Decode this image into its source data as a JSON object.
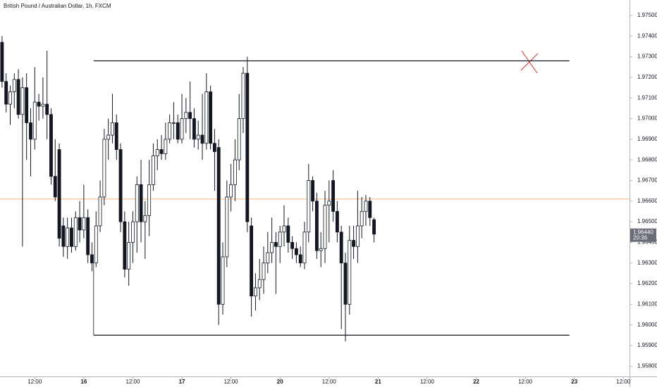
{
  "chart_data": {
    "type": "candlestick",
    "title": "British Pound / Australian Dollar, 1h, FXCM",
    "open": [
      1.9737,
      1.9718,
      1.9707,
      1.9713,
      1.9719,
      1.9702,
      1.9715,
      1.9698,
      1.969,
      1.9708,
      1.9706,
      1.9707,
      1.9702,
      1.9672,
      1.9685,
      1.9648,
      1.9638,
      1.9647,
      1.9638,
      1.9652,
      1.9646,
      1.9652,
      1.9634,
      1.963,
      1.9648,
      1.9662,
      1.969,
      1.9692,
      1.9698,
      1.9685,
      1.965,
      1.9627,
      1.964,
      1.965,
      1.9668,
      1.965,
      1.9653,
      1.9668,
      1.9682,
      1.9685,
      1.9683,
      1.969,
      1.9698,
      1.9698,
      1.969,
      1.97,
      1.9703,
      1.97,
      1.969,
      1.9692,
      1.9688,
      1.9713,
      1.9688,
      1.9686,
      1.961,
      1.9633,
      1.9662,
      1.9668,
      1.968,
      1.97,
      1.9722,
      1.9648,
      1.9614,
      1.9618,
      1.9622,
      1.963,
      1.9635,
      1.964,
      1.9638,
      1.9645,
      1.9648,
      1.964,
      1.9637,
      1.9634,
      1.963,
      1.9645,
      1.967,
      1.966,
      1.9636,
      1.9637,
      1.9658,
      1.967,
      1.9655,
      1.9645,
      1.963,
      1.961,
      1.9641,
      1.9638,
      1.9648,
      1.9655,
      1.966,
      1.9651
    ],
    "high": [
      1.974,
      1.9722,
      1.9716,
      1.9722,
      1.9724,
      1.972,
      1.9722,
      1.9705,
      1.9725,
      1.9712,
      1.972,
      1.9733,
      1.9705,
      1.969,
      1.9688,
      1.9652,
      1.9652,
      1.9652,
      1.9655,
      1.966,
      1.9668,
      1.9656,
      1.964,
      1.9655,
      1.967,
      1.9695,
      1.97,
      1.9712,
      1.9702,
      1.9688,
      1.9655,
      1.965,
      1.9655,
      1.9672,
      1.968,
      1.966,
      1.968,
      1.9688,
      1.969,
      1.9692,
      1.9698,
      1.9702,
      1.9708,
      1.9702,
      1.9712,
      1.971,
      1.9718,
      1.9705,
      1.9699,
      1.9712,
      1.9722,
      1.9716,
      1.9695,
      1.969,
      1.964,
      1.967,
      1.9678,
      1.969,
      1.9712,
      1.9725,
      1.973,
      1.9652,
      1.9625,
      1.9632,
      1.9638,
      1.9645,
      1.9652,
      1.9645,
      1.9648,
      1.9658,
      1.9652,
      1.9643,
      1.964,
      1.9638,
      1.965,
      1.9678,
      1.9672,
      1.9664,
      1.9645,
      1.9665,
      1.967,
      1.9675,
      1.966,
      1.9648,
      1.9635,
      1.9648,
      1.9648,
      1.9665,
      1.9662,
      1.9663,
      1.9662,
      1.9652
    ],
    "low": [
      1.9715,
      1.9703,
      1.9697,
      1.9705,
      1.97,
      1.9638,
      1.968,
      1.9672,
      1.9685,
      1.9699,
      1.97,
      1.969,
      1.9668,
      1.966,
      1.9638,
      1.9633,
      1.9632,
      1.9635,
      1.9636,
      1.964,
      1.9642,
      1.963,
      1.9626,
      1.9628,
      1.9645,
      1.9658,
      1.968,
      1.9688,
      1.968,
      1.9645,
      1.9623,
      1.9619,
      1.963,
      1.9635,
      1.964,
      1.9632,
      1.9643,
      1.9665,
      1.9675,
      1.968,
      1.968,
      1.9688,
      1.969,
      1.9688,
      1.9688,
      1.9693,
      1.969,
      1.9686,
      1.9685,
      1.968,
      1.9685,
      1.9685,
      1.9665,
      1.96,
      1.9605,
      1.9628,
      1.9655,
      1.966,
      1.9675,
      1.9693,
      1.9645,
      1.9604,
      1.9607,
      1.9612,
      1.9615,
      1.9625,
      1.963,
      1.9615,
      1.963,
      1.9638,
      1.9635,
      1.9632,
      1.963,
      1.9628,
      1.9627,
      1.964,
      1.9655,
      1.9632,
      1.9628,
      1.963,
      1.964,
      1.965,
      1.964,
      1.9598,
      1.9592,
      1.9605,
      1.9632,
      1.963,
      1.9642,
      1.9648,
      1.9648,
      1.964
    ],
    "close": [
      1.9718,
      1.9707,
      1.9713,
      1.9719,
      1.9702,
      1.9715,
      1.9698,
      1.969,
      1.9708,
      1.9706,
      1.9707,
      1.9702,
      1.9672,
      1.9662,
      1.9642,
      1.9638,
      1.9647,
      1.9638,
      1.9652,
      1.9646,
      1.9652,
      1.9634,
      1.963,
      1.9648,
      1.9662,
      1.969,
      1.9692,
      1.9698,
      1.9685,
      1.965,
      1.9627,
      1.964,
      1.965,
      1.9668,
      1.965,
      1.9653,
      1.9668,
      1.9682,
      1.9685,
      1.9683,
      1.969,
      1.9698,
      1.9698,
      1.969,
      1.97,
      1.9703,
      1.97,
      1.969,
      1.9692,
      1.9688,
      1.9713,
      1.9688,
      1.9684,
      1.961,
      1.9633,
      1.9662,
      1.9668,
      1.968,
      1.97,
      1.9722,
      1.965,
      1.9614,
      1.9618,
      1.9622,
      1.963,
      1.9635,
      1.964,
      1.9638,
      1.9645,
      1.9648,
      1.964,
      1.9637,
      1.9634,
      1.963,
      1.9645,
      1.967,
      1.966,
      1.9636,
      1.9637,
      1.9658,
      1.966,
      1.9655,
      1.9645,
      1.963,
      1.961,
      1.9641,
      1.9638,
      1.9648,
      1.9655,
      1.966,
      1.9652,
      1.9644
    ],
    "up_color": "#ffffff",
    "down_color": "#131722",
    "edge_color": "#131722",
    "xlim": [
      -0.5,
      153.5
    ],
    "xticks": [
      {
        "value": 8,
        "label": "12:00"
      },
      {
        "value": 20,
        "label": "16"
      },
      {
        "value": 32,
        "label": "12:00"
      },
      {
        "value": 44,
        "label": "17"
      },
      {
        "value": 56,
        "label": "12:00"
      },
      {
        "value": 68,
        "label": "20"
      },
      {
        "value": 80,
        "label": "12:00"
      },
      {
        "value": 92,
        "label": "21"
      },
      {
        "value": 104,
        "label": "12:00"
      },
      {
        "value": 116,
        "label": "22"
      },
      {
        "value": 128,
        "label": "12:00"
      },
      {
        "value": 140,
        "label": "23"
      },
      {
        "value": 152,
        "label": "12:00"
      }
    ],
    "ylim": [
      1.9575,
      1.97575
    ],
    "yticks": [
      {
        "value": 1.958,
        "label": "1.95800"
      },
      {
        "value": 1.959,
        "label": "1.95900"
      },
      {
        "value": 1.96,
        "label": "1.96000"
      },
      {
        "value": 1.961,
        "label": "1.96100"
      },
      {
        "value": 1.962,
        "label": "1.96200"
      },
      {
        "value": 1.963,
        "label": "1.96300"
      },
      {
        "value": 1.964,
        "label": "1.96400"
      },
      {
        "value": 1.965,
        "label": "1.96500"
      },
      {
        "value": 1.966,
        "label": "1.96600"
      },
      {
        "value": 1.967,
        "label": "1.96700"
      },
      {
        "value": 1.968,
        "label": "1.96800"
      },
      {
        "value": 1.969,
        "label": "1.96900"
      },
      {
        "value": 1.97,
        "label": "1.97000"
      },
      {
        "value": 1.971,
        "label": "1.97100"
      },
      {
        "value": 1.972,
        "label": "1.97200"
      },
      {
        "value": 1.973,
        "label": "1.97300"
      },
      {
        "value": 1.974,
        "label": "1.97400"
      },
      {
        "value": 1.975,
        "label": "1.97500"
      }
    ],
    "levels": [
      {
        "price": 1.9728,
        "x": [
          22.4,
          138.8
        ],
        "color": "#131722"
      },
      {
        "price": 1.9595,
        "x": [
          22.4,
          138.8
        ],
        "color": "#131722"
      }
    ],
    "price_line": {
      "price": 1.9661,
      "color": "#f5b97a"
    },
    "last_price": {
      "value": 1.9644,
      "label": "1.96440",
      "countdown": "20:36"
    }
  }
}
